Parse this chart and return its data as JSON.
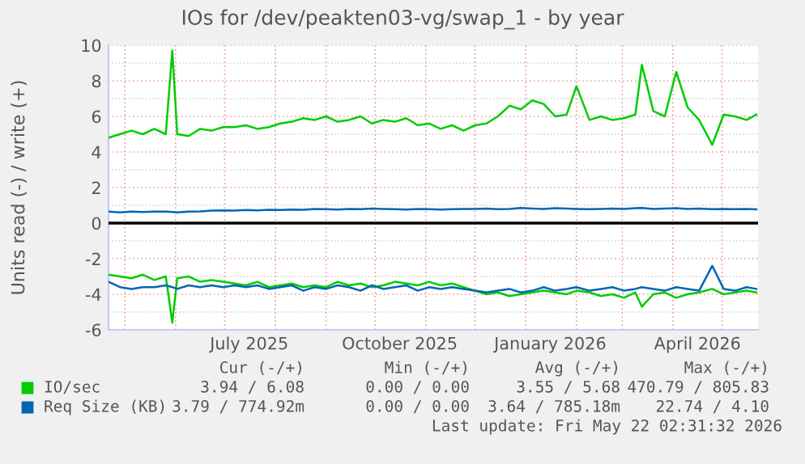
{
  "chart_data": {
    "type": "line",
    "title": "IOs for /dev/peakten03-vg/swap_1 - by year",
    "ylabel": "Units read (-) / write (+)",
    "x": [
      "2025-04-21",
      "2025-04-28",
      "2025-05-05",
      "2025-05-12",
      "2025-05-19",
      "2025-05-26",
      "2025-05-30",
      "2025-06-02",
      "2025-06-09",
      "2025-06-16",
      "2025-06-23",
      "2025-06-30",
      "2025-07-07",
      "2025-07-14",
      "2025-07-21",
      "2025-07-28",
      "2025-08-04",
      "2025-08-11",
      "2025-08-18",
      "2025-08-25",
      "2025-09-01",
      "2025-09-08",
      "2025-09-15",
      "2025-09-22",
      "2025-09-29",
      "2025-10-06",
      "2025-10-13",
      "2025-10-20",
      "2025-10-27",
      "2025-11-03",
      "2025-11-10",
      "2025-11-17",
      "2025-11-24",
      "2025-12-01",
      "2025-12-08",
      "2025-12-15",
      "2025-12-22",
      "2025-12-29",
      "2026-01-05",
      "2026-01-12",
      "2026-01-19",
      "2026-01-26",
      "2026-02-01",
      "2026-02-09",
      "2026-02-16",
      "2026-02-23",
      "2026-03-02",
      "2026-03-09",
      "2026-03-13",
      "2026-03-20",
      "2026-03-27",
      "2026-04-03",
      "2026-04-10",
      "2026-04-17",
      "2026-04-25",
      "2026-05-02",
      "2026-05-09",
      "2026-05-16",
      "2026-05-22"
    ],
    "series": [
      {
        "name": "IO/sec",
        "color": "#00cc00",
        "values": [
          4.8,
          5.0,
          5.2,
          5.0,
          5.3,
          5.0,
          9.7,
          5.0,
          4.9,
          5.3,
          5.2,
          5.4,
          5.4,
          5.5,
          5.3,
          5.4,
          5.6,
          5.7,
          5.9,
          5.8,
          6.0,
          5.7,
          5.8,
          6.0,
          5.6,
          5.8,
          5.7,
          5.9,
          5.5,
          5.6,
          5.3,
          5.5,
          5.2,
          5.5,
          5.6,
          6.0,
          6.6,
          6.4,
          6.9,
          6.7,
          6.0,
          6.1,
          7.7,
          5.8,
          6.0,
          5.8,
          5.9,
          6.1,
          8.9,
          6.3,
          6.0,
          8.5,
          6.5,
          5.8,
          4.4,
          6.1,
          6.0,
          5.8,
          6.1
        ]
      },
      {
        "color": "#00cc00",
        "values": [
          -2.9,
          -3.0,
          -3.1,
          -2.9,
          -3.2,
          -3.0,
          -5.6,
          -3.1,
          -3.0,
          -3.3,
          -3.2,
          -3.3,
          -3.4,
          -3.5,
          -3.3,
          -3.6,
          -3.5,
          -3.4,
          -3.6,
          -3.5,
          -3.6,
          -3.3,
          -3.5,
          -3.4,
          -3.6,
          -3.5,
          -3.3,
          -3.4,
          -3.5,
          -3.3,
          -3.5,
          -3.4,
          -3.6,
          -3.8,
          -4.0,
          -3.9,
          -4.1,
          -4.0,
          -3.9,
          -3.8,
          -3.9,
          -4.0,
          -3.8,
          -3.9,
          -4.1,
          -4.0,
          -4.2,
          -3.9,
          -4.7,
          -4.0,
          -3.9,
          -4.2,
          -4.0,
          -3.9,
          -3.7,
          -4.0,
          -3.9,
          -3.8,
          -3.9
        ]
      },
      {
        "name": "Req Size (KB)",
        "color": "#0066b3",
        "values": [
          0.65,
          0.6,
          0.65,
          0.62,
          0.65,
          0.65,
          0.62,
          0.6,
          0.65,
          0.66,
          0.7,
          0.72,
          0.7,
          0.74,
          0.72,
          0.75,
          0.74,
          0.76,
          0.75,
          0.8,
          0.78,
          0.76,
          0.8,
          0.78,
          0.82,
          0.8,
          0.78,
          0.76,
          0.8,
          0.78,
          0.76,
          0.78,
          0.8,
          0.8,
          0.82,
          0.78,
          0.8,
          0.85,
          0.82,
          0.8,
          0.84,
          0.82,
          0.8,
          0.78,
          0.8,
          0.82,
          0.8,
          0.84,
          0.85,
          0.8,
          0.82,
          0.84,
          0.8,
          0.82,
          0.78,
          0.8,
          0.78,
          0.8,
          0.78
        ]
      },
      {
        "color": "#0066b3",
        "values": [
          -3.3,
          -3.6,
          -3.7,
          -3.6,
          -3.6,
          -3.5,
          -3.6,
          -3.7,
          -3.5,
          -3.6,
          -3.5,
          -3.6,
          -3.5,
          -3.6,
          -3.5,
          -3.7,
          -3.6,
          -3.5,
          -3.8,
          -3.6,
          -3.7,
          -3.5,
          -3.6,
          -3.8,
          -3.5,
          -3.7,
          -3.6,
          -3.5,
          -3.8,
          -3.6,
          -3.7,
          -3.6,
          -3.7,
          -3.8,
          -3.9,
          -3.8,
          -3.7,
          -3.9,
          -3.8,
          -3.6,
          -3.8,
          -3.7,
          -3.6,
          -3.8,
          -3.7,
          -3.6,
          -3.8,
          -3.7,
          -3.6,
          -3.7,
          -3.8,
          -3.6,
          -3.7,
          -3.8,
          -2.4,
          -3.7,
          -3.8,
          -3.6,
          -3.7
        ]
      }
    ],
    "xlim": [
      "2025-04-21",
      "2026-05-23"
    ],
    "xticks": [
      {
        "value": "2025-05-01",
        "label": null
      },
      {
        "value": "2025-06-01",
        "label": null
      },
      {
        "value": "2025-07-01",
        "label": null
      },
      {
        "value": "2025-07-16",
        "label": "July 2025"
      },
      {
        "value": "2025-08-01",
        "label": null
      },
      {
        "value": "2025-09-01",
        "label": null
      },
      {
        "value": "2025-10-01",
        "label": null
      },
      {
        "value": "2025-10-16",
        "label": "October 2025"
      },
      {
        "value": "2025-11-01",
        "label": null
      },
      {
        "value": "2025-12-01",
        "label": null
      },
      {
        "value": "2026-01-01",
        "label": null
      },
      {
        "value": "2026-01-16",
        "label": "January 2026"
      },
      {
        "value": "2026-02-01",
        "label": null
      },
      {
        "value": "2026-03-01",
        "label": null
      },
      {
        "value": "2026-04-01",
        "label": null
      },
      {
        "value": "2026-04-16",
        "label": "April 2026"
      },
      {
        "value": "2026-05-01",
        "label": null
      }
    ],
    "ylim": [
      -6,
      10
    ],
    "yticks": [
      -6,
      -4,
      -2,
      0,
      2,
      4,
      6,
      8,
      10
    ],
    "grid": true,
    "legend": "bottom",
    "ref_lines": [
      {
        "axis": "y",
        "value": 0,
        "color": "#000000"
      }
    ],
    "annotations": [
      "Cur (-/+)",
      "Min (-/+)",
      "Avg (-/+)",
      "Max (-/+)",
      "3.94 / 6.08",
      "0.00 / 0.00",
      "3.55 / 5.68",
      "470.79 / 805.83",
      "3.79 / 774.92m",
      "0.00 / 0.00",
      "3.64 / 785.18m",
      "22.74 / 4.10",
      "Last update: Fri May 22 02:31:32 2026"
    ]
  }
}
